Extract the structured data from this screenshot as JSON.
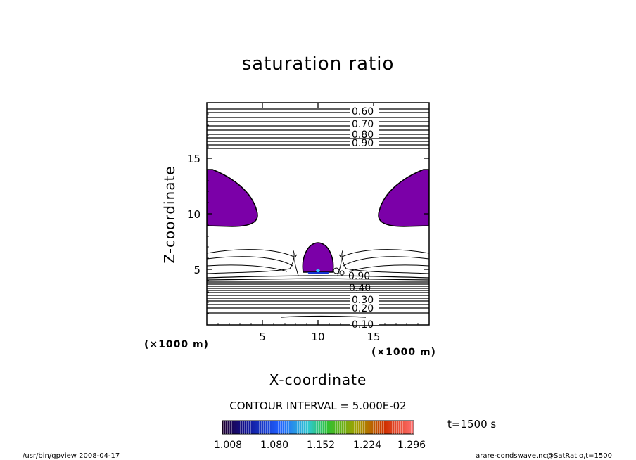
{
  "chart_data": {
    "type": "contour",
    "title": "saturation ratio",
    "xlabel": "X-coordinate",
    "ylabel": "Z-coordinate",
    "x_unit": "(×1000 m)",
    "y_unit": "(×1000 m)",
    "xlim": [
      0,
      20
    ],
    "ylim": [
      0,
      20
    ],
    "x_ticks": [
      5,
      10,
      15
    ],
    "y_ticks": [
      5,
      10,
      15
    ],
    "contour_labels": [
      "0.60",
      "0.70",
      "0.80",
      "0.90",
      "0.90",
      "0.40",
      "0.30",
      "0.20",
      "0.10"
    ],
    "contour_interval": "CONTOUR INTERVAL = 5.000E-02",
    "time": "t=1500 s",
    "colorbar_ticks": [
      "1.008",
      "1.080",
      "1.152",
      "1.224",
      "1.296"
    ],
    "shading_threshold": 1.008,
    "supersaturated_color": "#7b00a8",
    "regions": [
      {
        "name": "left supersaturated region",
        "x_range": [
          0,
          4.5
        ],
        "z_range": [
          8.5,
          14
        ]
      },
      {
        "name": "right supersaturated region",
        "x_range": [
          15.5,
          20
        ],
        "z_range": [
          8.5,
          14
        ]
      },
      {
        "name": "central supersaturated cap",
        "x_range": [
          9,
          11.5
        ],
        "z_range": [
          4.5,
          7.5
        ]
      }
    ]
  },
  "footer": {
    "left": "/usr/bin/gpview   2008-04-17",
    "right": "arare-condswave.nc@SatRatio,t=1500"
  }
}
